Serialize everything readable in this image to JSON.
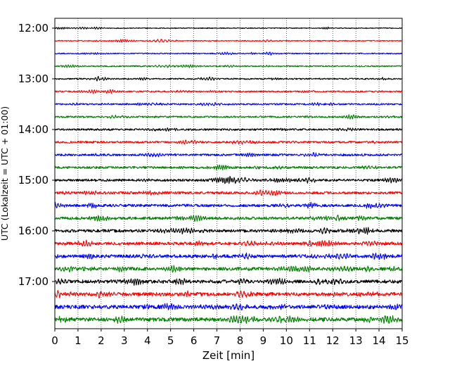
{
  "chart_data": {
    "type": "line",
    "title": "",
    "xlabel": "Zeit  [min]",
    "ylabel": "UTC (Lokalzeit = UTC + 01:00)",
    "xlim": [
      0,
      15
    ],
    "x_ticks": [
      0,
      1,
      2,
      3,
      4,
      5,
      6,
      7,
      8,
      9,
      10,
      11,
      12,
      13,
      14,
      15
    ],
    "y_tick_labels": [
      "12:00",
      "13:00",
      "14:00",
      "15:00",
      "16:00",
      "17:00"
    ],
    "grid": "vertical dotted",
    "trace_interval_minutes": 15,
    "trace_start": "12:00",
    "trace_count": 24,
    "trace_colors": [
      "#000000",
      "#ff0000",
      "#0000ff",
      "#007f00"
    ],
    "series": [
      {
        "start": "12:00",
        "color": "#000000"
      },
      {
        "start": "12:15",
        "color": "#ff0000"
      },
      {
        "start": "12:30",
        "color": "#0000ff"
      },
      {
        "start": "12:45",
        "color": "#007f00"
      },
      {
        "start": "13:00",
        "color": "#000000"
      },
      {
        "start": "13:15",
        "color": "#ff0000"
      },
      {
        "start": "13:30",
        "color": "#0000ff"
      },
      {
        "start": "13:45",
        "color": "#007f00"
      },
      {
        "start": "14:00",
        "color": "#000000"
      },
      {
        "start": "14:15",
        "color": "#ff0000"
      },
      {
        "start": "14:30",
        "color": "#0000ff"
      },
      {
        "start": "14:45",
        "color": "#007f00"
      },
      {
        "start": "15:00",
        "color": "#000000"
      },
      {
        "start": "15:15",
        "color": "#ff0000"
      },
      {
        "start": "15:30",
        "color": "#0000ff"
      },
      {
        "start": "15:45",
        "color": "#007f00"
      },
      {
        "start": "16:00",
        "color": "#000000"
      },
      {
        "start": "16:15",
        "color": "#ff0000"
      },
      {
        "start": "16:30",
        "color": "#0000ff"
      },
      {
        "start": "16:45",
        "color": "#007f00"
      },
      {
        "start": "17:00",
        "color": "#000000"
      },
      {
        "start": "17:15",
        "color": "#ff0000"
      },
      {
        "start": "17:30",
        "color": "#0000ff"
      },
      {
        "start": "17:45",
        "color": "#007f00"
      }
    ]
  }
}
